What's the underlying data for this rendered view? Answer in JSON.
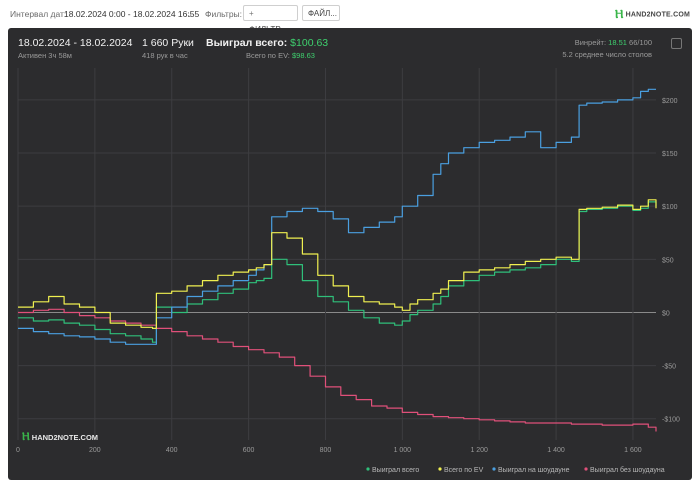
{
  "topbar": {
    "interval_label": "Интервал дат:",
    "interval_value": "18.02.2024 0:00 - 18.02.2024 16:55",
    "filters_label": "Фильтры:",
    "filter_button": "ФИЛЬТР...",
    "file_button": "ФАЙЛ...",
    "logo_text": "HAND2NOTE.COM"
  },
  "header": {
    "date_range": "18.02.2024 - 18.02.2024",
    "active": "Активен 3ч 58м",
    "hands": "1 660 Руки",
    "hands_per_hour": "418 рук в час",
    "won_label": "Выиграл всего:",
    "won_value": "$100.63",
    "ev_label": "Всего по EV:",
    "ev_value": "$98.63",
    "winrate_label": "Винрейт:",
    "winrate_value": "18.51",
    "winrate_rest": "66/100",
    "avg_tables": "5.2 среднее число столов"
  },
  "watermark": "HAND2NOTE.COM",
  "colors": {
    "total": "#2fbf7a",
    "ev": "#f0f050",
    "showdown": "#4a9fe0",
    "non_showdown": "#e0507a"
  },
  "chart_data": {
    "type": "line",
    "xlim": [
      0,
      1660
    ],
    "ylim": [
      -120,
      230
    ],
    "x_ticks": [
      0,
      200,
      400,
      600,
      800,
      1000,
      1200,
      1400,
      1600
    ],
    "x_tick_labels": [
      "0",
      "200",
      "400",
      "600",
      "800",
      "1 000",
      "1 200",
      "1 400",
      "1 600"
    ],
    "y_ticks": [
      -100,
      -50,
      0,
      50,
      100,
      150,
      200
    ],
    "y_tick_labels": [
      "-$100",
      "-$50",
      "$0",
      "$50",
      "$100",
      "$150",
      "$200"
    ],
    "grid": true,
    "legend_position": "bottom-right",
    "series": [
      {
        "name": "Выиграл всего",
        "key": "total",
        "x": [
          0,
          40,
          80,
          120,
          160,
          200,
          240,
          280,
          320,
          350,
          360,
          400,
          440,
          480,
          520,
          560,
          600,
          620,
          640,
          660,
          700,
          740,
          780,
          820,
          860,
          900,
          940,
          980,
          1000,
          1020,
          1040,
          1080,
          1100,
          1120,
          1160,
          1200,
          1240,
          1280,
          1320,
          1360,
          1400,
          1440,
          1460,
          1480,
          1520,
          1560,
          1600,
          1620,
          1640,
          1660
        ],
        "y": [
          -5,
          -8,
          -7,
          -10,
          -12,
          -16,
          -20,
          -22,
          -25,
          -28,
          5,
          0,
          8,
          12,
          18,
          22,
          28,
          30,
          32,
          50,
          45,
          30,
          15,
          10,
          2,
          -5,
          -10,
          -12,
          -8,
          -2,
          2,
          8,
          15,
          25,
          30,
          35,
          38,
          40,
          42,
          45,
          50,
          48,
          95,
          97,
          98,
          100,
          96,
          98,
          104,
          100
        ]
      },
      {
        "name": "Всего по EV",
        "key": "ev",
        "x": [
          0,
          40,
          80,
          120,
          160,
          200,
          240,
          280,
          320,
          350,
          360,
          400,
          440,
          480,
          520,
          560,
          600,
          620,
          640,
          660,
          700,
          740,
          780,
          820,
          860,
          900,
          940,
          980,
          1000,
          1020,
          1040,
          1080,
          1100,
          1120,
          1160,
          1200,
          1240,
          1280,
          1320,
          1360,
          1400,
          1440,
          1460,
          1480,
          1520,
          1560,
          1600,
          1620,
          1640,
          1660
        ],
        "y": [
          5,
          10,
          15,
          8,
          5,
          0,
          -10,
          -12,
          -14,
          -15,
          18,
          20,
          25,
          30,
          35,
          38,
          40,
          42,
          45,
          75,
          70,
          55,
          35,
          25,
          15,
          10,
          8,
          5,
          2,
          8,
          12,
          18,
          22,
          30,
          38,
          40,
          42,
          45,
          48,
          50,
          52,
          50,
          97,
          98,
          99,
          101,
          97,
          100,
          106,
          98
        ]
      },
      {
        "name": "Выиграл на шоудауне",
        "key": "showdown",
        "x": [
          0,
          40,
          80,
          120,
          160,
          200,
          240,
          280,
          320,
          360,
          400,
          440,
          480,
          520,
          560,
          600,
          620,
          640,
          660,
          700,
          740,
          780,
          820,
          860,
          900,
          940,
          980,
          1000,
          1040,
          1080,
          1100,
          1120,
          1160,
          1200,
          1240,
          1280,
          1320,
          1360,
          1400,
          1440,
          1460,
          1480,
          1520,
          1560,
          1600,
          1620,
          1640,
          1660
        ],
        "y": [
          -15,
          -18,
          -20,
          -22,
          -23,
          -25,
          -28,
          -30,
          -30,
          -5,
          5,
          15,
          20,
          25,
          30,
          35,
          40,
          45,
          90,
          95,
          98,
          95,
          88,
          75,
          80,
          85,
          90,
          100,
          110,
          130,
          140,
          150,
          155,
          160,
          162,
          165,
          170,
          155,
          160,
          165,
          195,
          197,
          198,
          200,
          202,
          208,
          210,
          210
        ]
      },
      {
        "name": "Выиграл без шоудауна",
        "key": "non_showdown",
        "x": [
          0,
          40,
          80,
          120,
          160,
          200,
          240,
          280,
          320,
          360,
          400,
          440,
          480,
          520,
          560,
          600,
          640,
          680,
          720,
          760,
          800,
          840,
          880,
          920,
          960,
          1000,
          1040,
          1080,
          1120,
          1160,
          1200,
          1240,
          1280,
          1320,
          1360,
          1400,
          1440,
          1480,
          1520,
          1560,
          1600,
          1640,
          1660
        ],
        "y": [
          0,
          2,
          3,
          0,
          -3,
          -5,
          -8,
          -10,
          -12,
          -15,
          -18,
          -22,
          -25,
          -28,
          -32,
          -35,
          -38,
          -42,
          -50,
          -60,
          -70,
          -78,
          -82,
          -88,
          -90,
          -94,
          -96,
          -98,
          -99,
          -100,
          -101,
          -102,
          -103,
          -104,
          -104,
          -104,
          -105,
          -105,
          -106,
          -106,
          -105,
          -108,
          -112
        ]
      }
    ]
  }
}
